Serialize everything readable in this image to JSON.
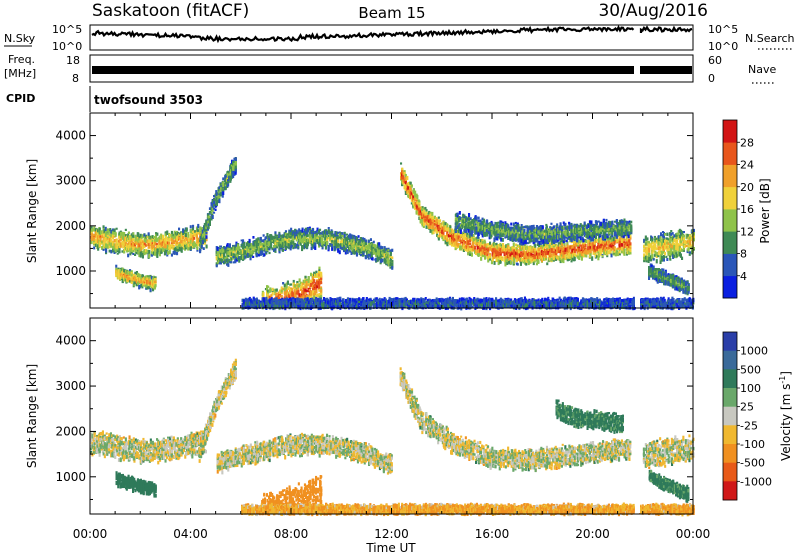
{
  "header": {
    "station": "Saskatoon (fitACF)",
    "beam": "Beam 15",
    "date": "30/Aug/2016"
  },
  "top_panels": {
    "nsky_label": "N.Sky",
    "nsearch_label": "N.Search",
    "noise_ticks": [
      "10^5",
      "10^0"
    ],
    "freq_label_1": "Freq.",
    "freq_label_2": "[MHz]",
    "freq_ticks": [
      "18",
      "8"
    ],
    "nave_label": "Nave",
    "nave_ticks": [
      "60",
      "0"
    ],
    "cpid_label": "CPID",
    "cpid_value": "twofsound 3503"
  },
  "x_axis": {
    "label": "Time UT",
    "ticks": [
      "00:00",
      "04:00",
      "08:00",
      "12:00",
      "16:00",
      "20:00",
      "00:00"
    ]
  },
  "chart_data": [
    {
      "type": "heatmap",
      "parameter": "Power",
      "ylabel": "Slant Range [km]",
      "ylim": [
        180,
        4500
      ],
      "yticks": [
        "1000",
        "2000",
        "3000",
        "4000"
      ],
      "xlim": [
        0,
        24
      ],
      "colorbar": {
        "title": "Power [dB]",
        "levels": [
          "4",
          "8",
          "12",
          "16",
          "20",
          "24",
          "28"
        ],
        "colors": [
          "#0a1fe0",
          "#2a56b8",
          "#3f8a55",
          "#8fc34a",
          "#f0d13a",
          "#f0a02a",
          "#e8561c",
          "#d21414"
        ]
      },
      "scatter_bands": [
        {
          "t": [
            0.0,
            1.0,
            2.0,
            3.0,
            4.0,
            4.6
          ],
          "r": [
            1750,
            1650,
            1550,
            1600,
            1700,
            1750
          ],
          "width": 260,
          "power": 18
        },
        {
          "t": [
            1.0,
            1.8,
            2.6
          ],
          "r": [
            950,
            800,
            700
          ],
          "width": 150,
          "power": 18
        },
        {
          "t": [
            4.3,
            5.0,
            5.8
          ],
          "r": [
            1500,
            2600,
            3400
          ],
          "width": 200,
          "power": 10
        },
        {
          "t": [
            5.0,
            6.5,
            8.0,
            9.5,
            11.0,
            12.0
          ],
          "r": [
            1300,
            1500,
            1700,
            1700,
            1500,
            1250
          ],
          "width": 220,
          "power": 12
        },
        {
          "t": [
            6.8,
            7.6,
            8.4,
            9.2
          ],
          "r": [
            250,
            350,
            500,
            750
          ],
          "width": 350,
          "power": 22
        },
        {
          "t": [
            12.3,
            13.2,
            14.5,
            16.0,
            17.5,
            19.0,
            20.5,
            21.5
          ],
          "r": [
            3200,
            2200,
            1700,
            1400,
            1350,
            1450,
            1550,
            1600
          ],
          "width": 230,
          "power": 22
        },
        {
          "t": [
            14.5,
            16.0,
            17.5,
            19.0,
            20.5,
            21.5
          ],
          "r": [
            2100,
            1900,
            1800,
            1850,
            1900,
            1950
          ],
          "width": 200,
          "power": 10
        },
        {
          "t": [
            22.0,
            23.0,
            24.0
          ],
          "r": [
            1450,
            1550,
            1650
          ],
          "width": 300,
          "power": 16
        },
        {
          "t": [
            22.2,
            23.0,
            23.8
          ],
          "r": [
            1000,
            800,
            600
          ],
          "width": 150,
          "power": 10
        },
        {
          "t": [
            6.0,
            10.0,
            14.0,
            18.0,
            22.0,
            24.0
          ],
          "r": [
            260,
            260,
            260,
            260,
            260,
            260
          ],
          "width": 120,
          "power": 6
        }
      ]
    },
    {
      "type": "heatmap",
      "parameter": "Velocity",
      "ylabel": "Slant Range [km]",
      "ylim": [
        180,
        4500
      ],
      "yticks": [
        "1000",
        "2000",
        "3000",
        "4000"
      ],
      "xlim": [
        0,
        24
      ],
      "colorbar": {
        "title": "Velocity [m s^-1]",
        "levels": [
          "1000",
          "500",
          "100",
          "25",
          "-25",
          "-100",
          "-500",
          "-1000"
        ],
        "colors": [
          "#2a3ea8",
          "#3a6a9a",
          "#2f7a5a",
          "#6aa86a",
          "#c8c8c0",
          "#f0b830",
          "#f09020",
          "#e85a18",
          "#d01818"
        ]
      },
      "scatter_bands": [
        {
          "t": [
            0.0,
            1.0,
            2.0,
            3.0,
            4.0,
            4.6
          ],
          "r": [
            1750,
            1650,
            1550,
            1600,
            1700,
            1750
          ],
          "width": 260,
          "velocity": 0
        },
        {
          "t": [
            1.0,
            1.8,
            2.6
          ],
          "r": [
            950,
            800,
            700
          ],
          "width": 150,
          "velocity": 300
        },
        {
          "t": [
            4.3,
            5.0,
            5.8
          ],
          "r": [
            1500,
            2600,
            3400
          ],
          "width": 200,
          "velocity": 0
        },
        {
          "t": [
            5.0,
            6.5,
            8.0,
            9.5,
            11.0,
            12.0
          ],
          "r": [
            1300,
            1500,
            1700,
            1700,
            1500,
            1250
          ],
          "width": 220,
          "velocity": 0
        },
        {
          "t": [
            6.8,
            7.6,
            8.4,
            9.2
          ],
          "r": [
            250,
            350,
            500,
            750
          ],
          "width": 350,
          "velocity": -300
        },
        {
          "t": [
            12.3,
            13.2,
            14.5,
            16.0,
            17.5,
            19.0,
            20.5,
            21.5
          ],
          "r": [
            3200,
            2200,
            1700,
            1400,
            1350,
            1450,
            1550,
            1600
          ],
          "width": 230,
          "velocity": 0
        },
        {
          "t": [
            18.5,
            19.2,
            20.5,
            21.2
          ],
          "r": [
            2500,
            2300,
            2200,
            2150
          ],
          "width": 200,
          "velocity": 150
        },
        {
          "t": [
            22.0,
            23.0,
            24.0
          ],
          "r": [
            1450,
            1550,
            1650
          ],
          "width": 300,
          "velocity": 0
        },
        {
          "t": [
            22.2,
            23.0,
            23.8
          ],
          "r": [
            1000,
            800,
            600
          ],
          "width": 150,
          "velocity": 150
        },
        {
          "t": [
            6.0,
            10.0,
            14.0,
            18.0,
            22.0,
            24.0
          ],
          "r": [
            260,
            260,
            260,
            260,
            260,
            260
          ],
          "width": 120,
          "velocity": -100
        }
      ]
    }
  ]
}
